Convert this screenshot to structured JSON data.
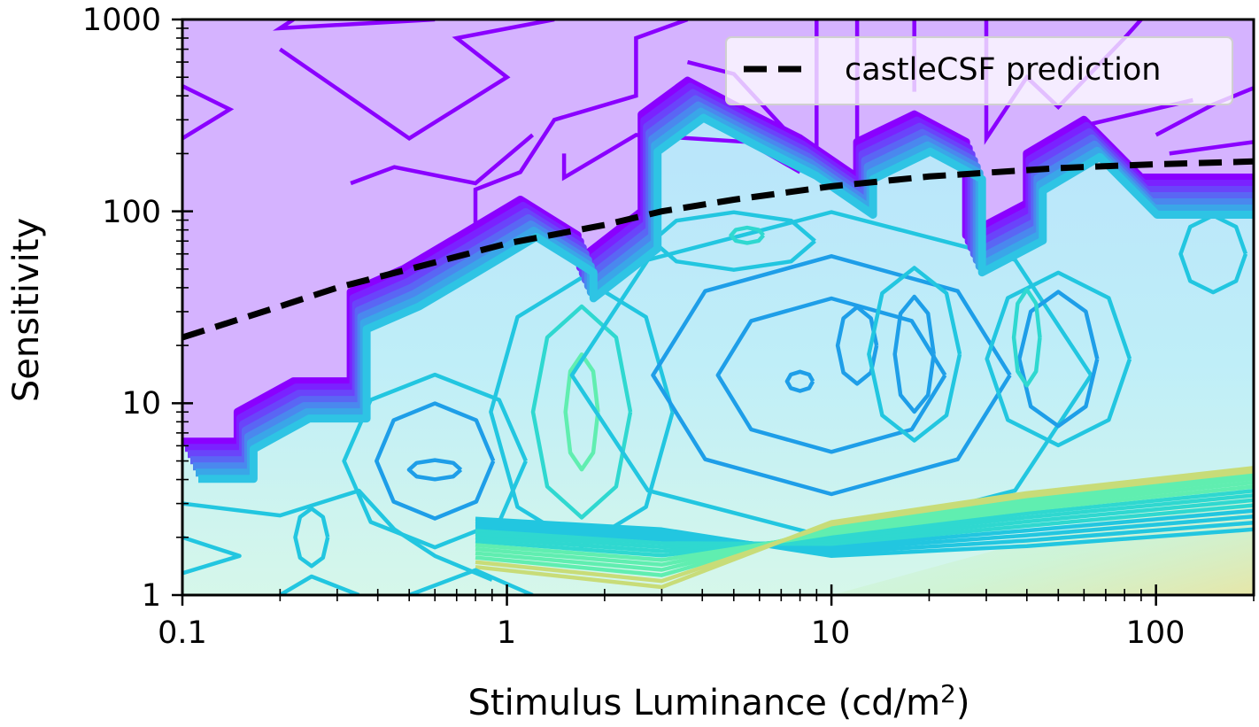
{
  "chart_data": {
    "type": "contour",
    "xlabel": "Stimulus Luminance (cd/m",
    "xlabel_superscript": "2",
    "xlabel_suffix": ")",
    "ylabel": "Sensitivity",
    "x_scale": "log",
    "y_scale": "log",
    "xlim": [
      0.1,
      200
    ],
    "ylim": [
      1,
      1000
    ],
    "x_ticks": [
      {
        "value": 0.1,
        "label": "0.1"
      },
      {
        "value": 1,
        "label": "1"
      },
      {
        "value": 10,
        "label": "10"
      },
      {
        "value": 100,
        "label": "100"
      }
    ],
    "y_ticks": [
      {
        "value": 1,
        "label": "1"
      },
      {
        "value": 10,
        "label": "10"
      },
      {
        "value": 100,
        "label": "100"
      },
      {
        "value": 1000,
        "label": "1000"
      }
    ],
    "colormap": "rainbow",
    "colors": {
      "high_region": "#d5b3ff",
      "contour_purple": "#8a00ff",
      "contour_blue": "#2a9df4",
      "contour_cyan": "#22d3e6",
      "contour_green": "#5ef0a8",
      "contour_yellow": "#d8d870",
      "fill_light": "#c8eef7",
      "prediction_line": "#000000"
    },
    "legend": {
      "position": "top-right",
      "entries": [
        {
          "label": "castleCSF prediction",
          "style": "dashed",
          "color": "#000000"
        }
      ]
    },
    "series": [
      {
        "name": "castleCSF prediction",
        "style": "dashed",
        "points": [
          [
            0.1,
            22
          ],
          [
            0.2,
            32
          ],
          [
            0.3,
            40
          ],
          [
            0.5,
            50
          ],
          [
            1,
            68
          ],
          [
            2,
            85
          ],
          [
            3,
            100
          ],
          [
            5,
            115
          ],
          [
            10,
            135
          ],
          [
            20,
            152
          ],
          [
            50,
            168
          ],
          [
            100,
            176
          ],
          [
            200,
            182
          ]
        ]
      }
    ],
    "threshold_boundary": [
      [
        0.1,
        6.3
      ],
      [
        0.148,
        6.3
      ],
      [
        0.148,
        9
      ],
      [
        0.22,
        13
      ],
      [
        0.33,
        13
      ],
      [
        0.33,
        38
      ],
      [
        0.48,
        50
      ],
      [
        0.72,
        75
      ],
      [
        1.1,
        115
      ],
      [
        1.65,
        75
      ],
      [
        1.65,
        55
      ],
      [
        2.6,
        100
      ],
      [
        2.6,
        320
      ],
      [
        3.6,
        480
      ],
      [
        5.5,
        330
      ],
      [
        8,
        240
      ],
      [
        12,
        150
      ],
      [
        12,
        230
      ],
      [
        18,
        320
      ],
      [
        26,
        230
      ],
      [
        26,
        75
      ],
      [
        40,
        110
      ],
      [
        40,
        200
      ],
      [
        60,
        300
      ],
      [
        90,
        150
      ],
      [
        200,
        150
      ]
    ]
  }
}
